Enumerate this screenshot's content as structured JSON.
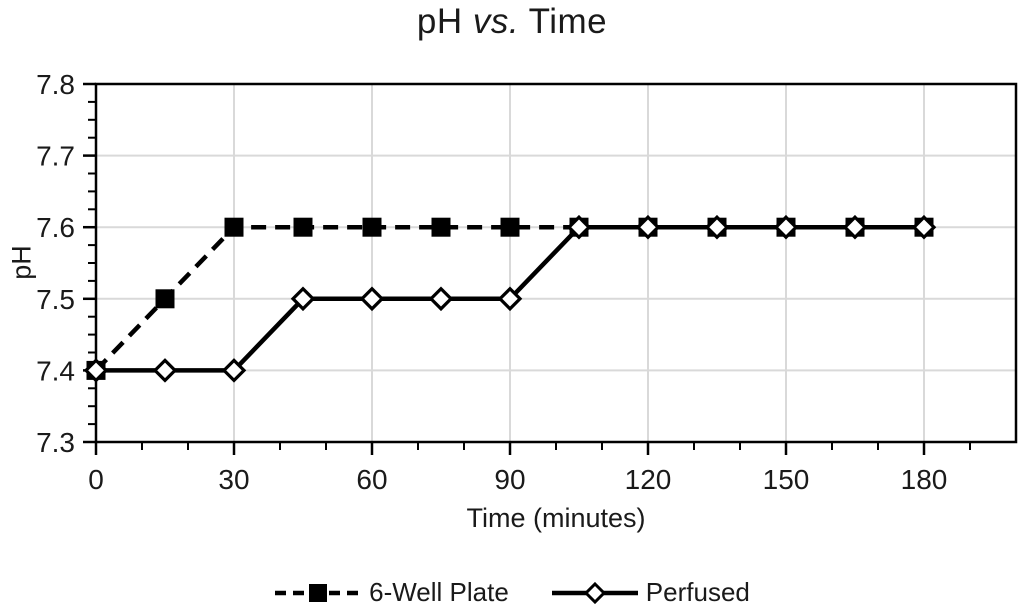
{
  "figure": {
    "background": "#ffffff",
    "title": "pH vs. Time",
    "title_parts": {
      "pre": "pH ",
      "italic": "vs.",
      "post": " Time"
    }
  },
  "chart_data": {
    "type": "line",
    "title": "pH vs. Time",
    "xlabel": "Time (minutes)",
    "ylabel": "pH",
    "xlim": [
      0,
      200
    ],
    "ylim": [
      7.3,
      7.8
    ],
    "x_major_ticks": [
      0,
      30,
      60,
      90,
      120,
      150,
      180
    ],
    "x_tick_labels": [
      "0",
      "30",
      "60",
      "90",
      "120",
      "150",
      "180"
    ],
    "x_minor_step": 10,
    "y_major_ticks": [
      7.3,
      7.4,
      7.5,
      7.6,
      7.7,
      7.8
    ],
    "y_tick_labels": [
      "7.3",
      "7.4",
      "7.5",
      "7.6",
      "7.7",
      "7.8"
    ],
    "y_minor_step": 0.025,
    "grid": true,
    "grid_color": "#d9d9d9",
    "frame_color": "#000000",
    "series_color": "#000000",
    "legend_position": "bottom",
    "x": [
      0,
      15,
      30,
      45,
      60,
      75,
      90,
      105,
      120,
      135,
      150,
      165,
      180
    ],
    "series": [
      {
        "name": "6-Well Plate",
        "line": "dashed",
        "marker": "square",
        "marker_fill": "filled",
        "values": [
          7.4,
          7.5,
          7.6,
          7.6,
          7.6,
          7.6,
          7.6,
          7.6,
          7.6,
          7.6,
          7.6,
          7.6,
          7.6
        ]
      },
      {
        "name": "Perfused",
        "line": "solid",
        "marker": "diamond",
        "marker_fill": "open",
        "values": [
          7.4,
          7.4,
          7.4,
          7.5,
          7.5,
          7.5,
          7.5,
          7.6,
          7.6,
          7.6,
          7.6,
          7.6,
          7.6
        ]
      }
    ]
  }
}
